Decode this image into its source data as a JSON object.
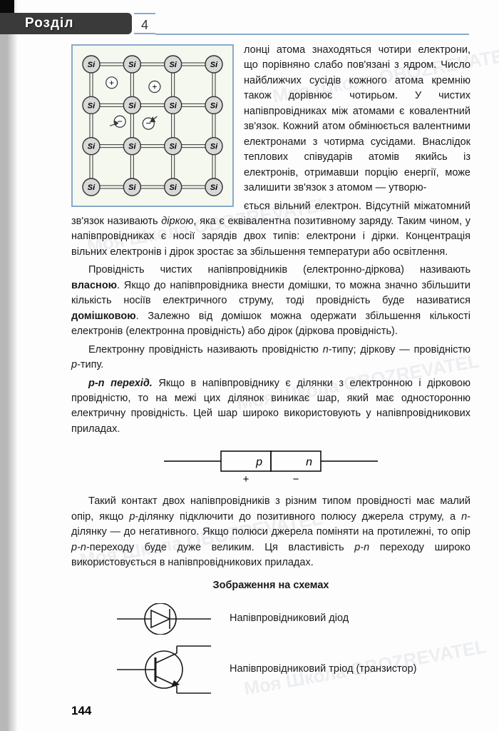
{
  "header": {
    "section_label": "Розділ",
    "chapter_number": "4"
  },
  "page_number": "144",
  "watermark_text": "Моя Школа   OBOZREVATEL",
  "lattice": {
    "atom_label": "Si",
    "cols": 4,
    "rows": 4,
    "bg": "#f4f8ef",
    "border": "#88aacc",
    "node_fill": "#d8d8d8",
    "node_stroke": "#333333",
    "bond_stroke": "#333333",
    "electron_fill": "#ffffff",
    "hole_fill": "#ffffff"
  },
  "paragraphs": {
    "p1_part1": "лонці атома знаходяться чотири електрони, що порівняно слабо пов'язані з ядром. Число найближчих сусідів кожного атома кремнію також дорівнює чотирьом. У чистих напівпровідниках між атомами є ковалентний зв'язок. Кожний атом обмінюється валентними електронами з чотирма сусідами. Внаслідок теплових співударів атомів якийсь із електронів, отримавши порцію енергії, може залишити зв'язок з атомом — утворю-",
    "p1_part2": "ється вільний електрон. Відсутній міжатомний зв'язок називають ",
    "p1_dirka": "діркою",
    "p1_part3": ", яка є еквівалентна позитивному заряду. Таким чином, у напівпровідниках є носії зарядів двох типів: електрони і дірки. Концентрація вільних електронів і дірок зростає за збільшення температури або освітлення.",
    "p2_a": "Провідність чистих напівпровідників (електронно-діркова) називають ",
    "p2_b": "власною",
    "p2_c": ". Якщо до напівпровідника внести домішки, то можна значно збільшити кількість носіїв електричного струму, тоді провідність буде називатися ",
    "p2_d": "домішковою",
    "p2_e": ". Залежно від домішок можна одержати збільшення кількості електронів (електронна провідність) або дірок (діркова провідність).",
    "p3_a": "Електронну провідність називають провідністю ",
    "p3_n": "n",
    "p3_b": "-типу; діркову — провідністю ",
    "p3_p": "p",
    "p3_c": "-типу.",
    "p4_a": "p-n перехід.",
    "p4_b": " Якщо в напівпровіднику є ділянки з електронною і дірковою провідністю, то на межі цих ділянок виникає шар, який має односторонню електричну провідність. Цей шар широко використовують у напівпровідникових приладах.",
    "p5_a": "Такий контакт двох напівпровідників з різним типом провідності має малий опір, якщо ",
    "p5_p": "p",
    "p5_b": "-ділянку підключити до позитивного полюсу джерела струму, а ",
    "p5_n": "n",
    "p5_c": "-ділянку — до негативного. Якщо полюси джерела поміняти на протилежні, то опір ",
    "p5_pn": "p-n",
    "p5_d": "-переходу буде дуже великим. Ця властивість ",
    "p5_pn2": "p-n",
    "p5_e": " переходу широко використовується в напівпровідникових приладах."
  },
  "schema": {
    "title": "Зображення на схемах",
    "diode_label": "Напівпровідниковий діод",
    "transistor_label": "Напівпровідниковий тріод (транзистор)"
  },
  "pn_box": {
    "p_label": "p",
    "n_label": "n",
    "plus": "+",
    "minus": "−",
    "box_stroke": "#000000",
    "line_stroke": "#000000"
  },
  "symbol_colors": {
    "stroke": "#1a1a1a",
    "fill": "#1a1a1a"
  }
}
